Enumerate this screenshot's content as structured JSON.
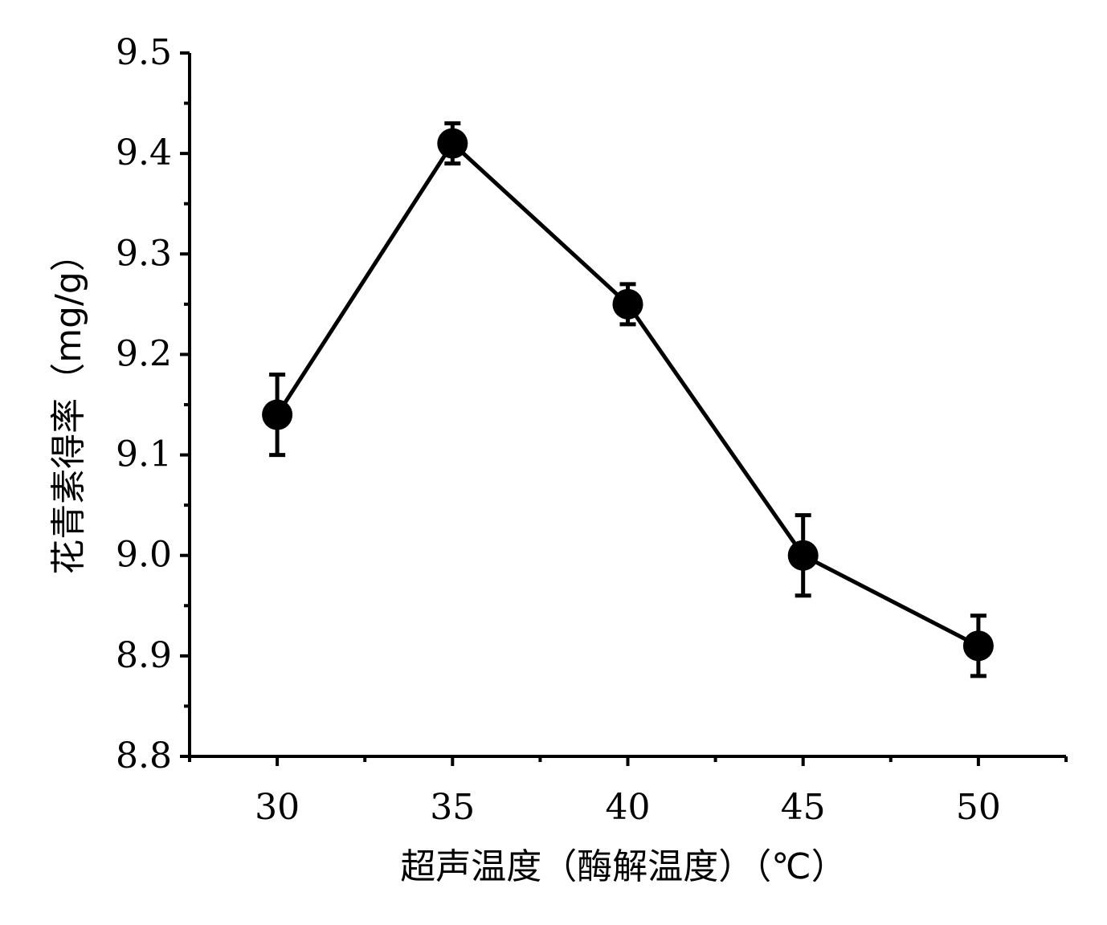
{
  "chart_data": {
    "type": "line",
    "title": "",
    "xlabel": "超声温度（酶解温度）（℃）",
    "ylabel": "花青素得率（mg/g）",
    "x": [
      30,
      35,
      40,
      45,
      50
    ],
    "xticks": [
      "30",
      "35",
      "40",
      "45",
      "50"
    ],
    "xlim": [
      27.5,
      52.5
    ],
    "ylim": [
      8.8,
      9.5
    ],
    "yticks": [
      "8.8",
      "8.9",
      "9.0",
      "9.1",
      "9.2",
      "9.3",
      "9.4",
      "9.5"
    ],
    "series": [
      {
        "values": [
          9.14,
          9.41,
          9.25,
          9.0,
          8.91
        ],
        "errors": [
          0.04,
          0.02,
          0.02,
          0.04,
          0.03
        ]
      }
    ],
    "grid": false,
    "colors": {
      "line": "#000000",
      "marker": "#000000"
    }
  }
}
